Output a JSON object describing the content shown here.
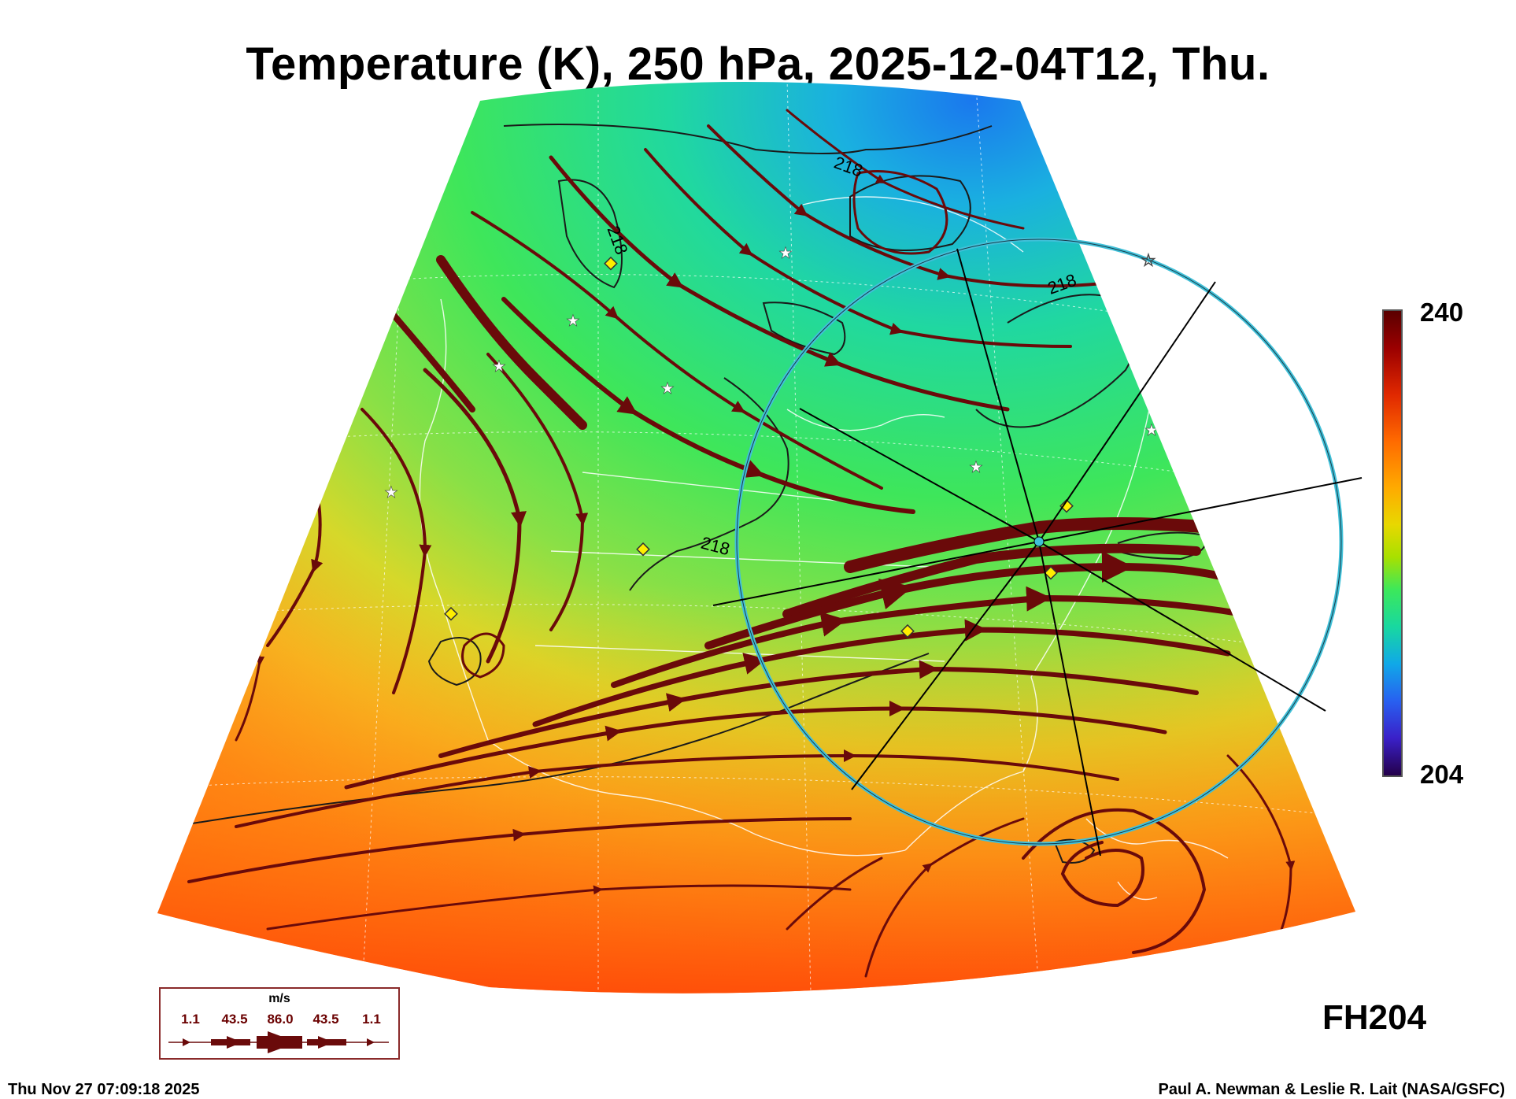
{
  "title": "Temperature (K), 250 hPa, 2025-12-04T12, Thu.",
  "colorbar": {
    "max_label": "240",
    "min_label": "204",
    "max": 240,
    "min": 204
  },
  "contour_labels": [
    "218",
    "218",
    "218",
    "218"
  ],
  "forecast_hour_label": "FH204",
  "wind_legend": {
    "units": "m/s",
    "values": [
      "1.1",
      "43.5",
      "86.0",
      "43.5",
      "1.1"
    ]
  },
  "timestamp": "Thu Nov 27 07:09:18 2025",
  "credit": "Paul A. Newman & Leslie R. Lait (NASA/GSFC)",
  "colors": {
    "streamline": "#6a0a0a",
    "ring": "#40c0d8",
    "marker_diamond": "#ffee00"
  }
}
